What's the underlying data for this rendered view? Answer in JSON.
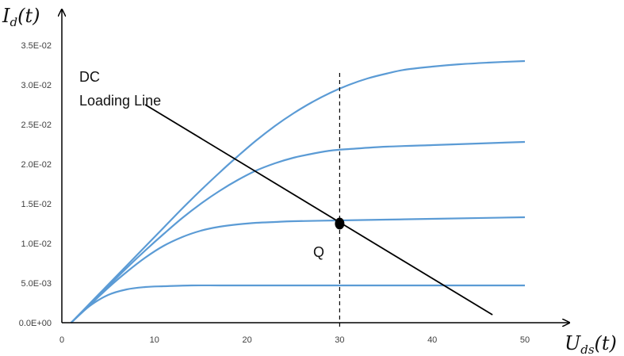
{
  "chart_data": {
    "type": "line",
    "x_range": [
      0,
      50
    ],
    "y_range": [
      0,
      0.035
    ],
    "x_ticks": [
      {
        "value": 0,
        "label": "0"
      },
      {
        "value": 10,
        "label": "10"
      },
      {
        "value": 20,
        "label": "20"
      },
      {
        "value": 30,
        "label": "30"
      },
      {
        "value": 40,
        "label": "40"
      },
      {
        "value": 50,
        "label": "50"
      }
    ],
    "y_ticks": [
      {
        "value": 0,
        "label": "0.0E+00"
      },
      {
        "value": 0.005,
        "label": "5.0E-03"
      },
      {
        "value": 0.01,
        "label": "1.0E-02"
      },
      {
        "value": 0.015,
        "label": "1.5E-02"
      },
      {
        "value": 0.02,
        "label": "2.0E-02"
      },
      {
        "value": 0.025,
        "label": "2.5E-02"
      },
      {
        "value": 0.03,
        "label": "3.0E-02"
      },
      {
        "value": 0.035,
        "label": "3.5E-02"
      }
    ],
    "ylabel": {
      "main": "I",
      "sub": "d",
      "arg": "(t)"
    },
    "xlabel": {
      "main": "U",
      "sub": "ds",
      "arg": "(t)"
    },
    "grid": false,
    "series_color": "#5b9bd5",
    "series": [
      {
        "x": [
          1,
          3,
          5,
          7,
          9,
          11,
          14,
          17,
          20,
          25,
          30,
          40,
          50
        ],
        "values": [
          0,
          0.0021,
          0.0035,
          0.0042,
          0.0045,
          0.0046,
          0.0047,
          0.0047,
          0.0047,
          0.0047,
          0.0047,
          0.0047,
          0.0047
        ]
      },
      {
        "x": [
          1,
          3,
          5,
          7,
          9,
          11,
          13,
          15,
          17,
          19,
          21,
          23,
          25,
          30,
          35,
          40,
          50
        ],
        "values": [
          0,
          0.0022,
          0.0044,
          0.0064,
          0.0082,
          0.0097,
          0.0108,
          0.0116,
          0.0121,
          0.0124,
          0.0126,
          0.0127,
          0.0128,
          0.0129,
          0.013,
          0.0131,
          0.0133
        ]
      },
      {
        "x": [
          1,
          3,
          5,
          7,
          9,
          11,
          13,
          15,
          17,
          19,
          21,
          23,
          25,
          27,
          29,
          31,
          35,
          40,
          45,
          50
        ],
        "values": [
          0,
          0.0023,
          0.0046,
          0.0069,
          0.0091,
          0.0112,
          0.0132,
          0.015,
          0.0166,
          0.018,
          0.0192,
          0.0201,
          0.0208,
          0.0213,
          0.0217,
          0.0219,
          0.0222,
          0.0224,
          0.0226,
          0.0228
        ]
      },
      {
        "x": [
          1,
          3,
          5,
          7,
          9,
          11,
          13,
          15,
          17,
          19,
          21,
          23,
          25,
          27,
          29,
          31,
          33,
          35,
          37,
          40,
          43,
          46,
          50
        ],
        "values": [
          0,
          0.0024,
          0.0048,
          0.0072,
          0.0096,
          0.012,
          0.0144,
          0.0167,
          0.0189,
          0.021,
          0.023,
          0.0248,
          0.0264,
          0.0278,
          0.029,
          0.03,
          0.0308,
          0.0314,
          0.0319,
          0.0323,
          0.0326,
          0.0328,
          0.033
        ]
      }
    ],
    "load_line": {
      "label_line1": "DC",
      "label_line2": "Loading Line",
      "x": [
        9,
        46.5
      ],
      "values": [
        0.0275,
        0.001
      ],
      "color": "#000000"
    },
    "q_point": {
      "label": "Q",
      "x": 30,
      "value": 0.0125
    },
    "q_vertical": {
      "x": 30,
      "y_from": -0.0005,
      "y_to": 0.0315,
      "style": "dashed"
    }
  }
}
